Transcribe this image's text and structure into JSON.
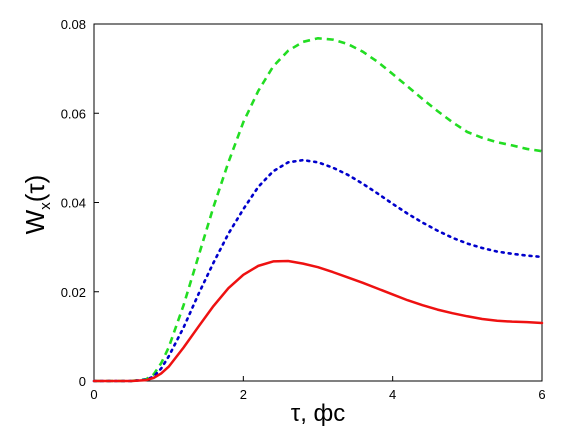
{
  "chart_data": {
    "type": "line",
    "title": "",
    "xlabel": "τ, фс",
    "ylabel_main": "W",
    "ylabel_sub": "x",
    "ylabel_arg": "(τ)",
    "xlim": [
      0,
      6
    ],
    "ylim": [
      0,
      0.08
    ],
    "x_ticks": [
      {
        "value": 0,
        "label": "0"
      },
      {
        "value": 2,
        "label": "2"
      },
      {
        "value": 4,
        "label": "4"
      },
      {
        "value": 6,
        "label": "6"
      }
    ],
    "y_ticks": [
      {
        "value": 0,
        "label": "0"
      },
      {
        "value": 0.02,
        "label": "0.02"
      },
      {
        "value": 0.04,
        "label": "0.04"
      },
      {
        "value": 0.06,
        "label": "0.06"
      },
      {
        "value": 0.08,
        "label": "0.08"
      }
    ],
    "grid": false,
    "legend": "none",
    "series": [
      {
        "color": "#22dd22",
        "style": "dashed",
        "x": [
          0,
          0.5,
          0.7,
          0.8,
          0.9,
          1.0,
          1.2,
          1.4,
          1.6,
          1.8,
          2.0,
          2.2,
          2.4,
          2.6,
          2.8,
          3.0,
          3.2,
          3.4,
          3.6,
          3.8,
          4.0,
          4.2,
          4.4,
          4.6,
          4.8,
          5.0,
          5.2,
          5.4,
          5.6,
          5.8,
          6.0
        ],
        "y": [
          0,
          0,
          0.0004,
          0.0015,
          0.004,
          0.0075,
          0.017,
          0.028,
          0.039,
          0.049,
          0.058,
          0.065,
          0.0705,
          0.074,
          0.076,
          0.0768,
          0.0765,
          0.0755,
          0.0738,
          0.0715,
          0.0688,
          0.066,
          0.0632,
          0.0605,
          0.058,
          0.0558,
          0.0545,
          0.0535,
          0.0528,
          0.052,
          0.0515
        ]
      },
      {
        "color": "#0000cc",
        "style": "dotted",
        "x": [
          0,
          0.5,
          0.7,
          0.8,
          0.9,
          1.0,
          1.2,
          1.4,
          1.6,
          1.8,
          2.0,
          2.2,
          2.4,
          2.6,
          2.8,
          3.0,
          3.2,
          3.4,
          3.6,
          3.8,
          4.0,
          4.2,
          4.4,
          4.6,
          4.8,
          5.0,
          5.2,
          5.4,
          5.6,
          5.8,
          6.0
        ],
        "y": [
          0,
          0,
          0.0003,
          0.001,
          0.0028,
          0.0055,
          0.012,
          0.0195,
          0.0265,
          0.033,
          0.0385,
          0.0435,
          0.047,
          0.049,
          0.0495,
          0.049,
          0.0478,
          0.0462,
          0.0442,
          0.042,
          0.0397,
          0.0375,
          0.0355,
          0.0337,
          0.0321,
          0.0308,
          0.0298,
          0.029,
          0.0285,
          0.0281,
          0.0278
        ]
      },
      {
        "color": "#ee1111",
        "style": "solid",
        "x": [
          0,
          0.5,
          0.7,
          0.8,
          0.9,
          1.0,
          1.2,
          1.4,
          1.6,
          1.8,
          2.0,
          2.2,
          2.4,
          2.6,
          2.8,
          3.0,
          3.2,
          3.4,
          3.6,
          3.8,
          4.0,
          4.2,
          4.4,
          4.6,
          4.8,
          5.0,
          5.2,
          5.4,
          5.6,
          5.8,
          6.0
        ],
        "y": [
          0,
          0,
          0.0002,
          0.0007,
          0.0017,
          0.0032,
          0.0075,
          0.0122,
          0.0168,
          0.0208,
          0.0238,
          0.0258,
          0.0268,
          0.0269,
          0.0263,
          0.0255,
          0.0244,
          0.0232,
          0.022,
          0.0207,
          0.0194,
          0.0181,
          0.017,
          0.016,
          0.0152,
          0.0145,
          0.0139,
          0.0135,
          0.0133,
          0.0132,
          0.013
        ]
      }
    ]
  }
}
